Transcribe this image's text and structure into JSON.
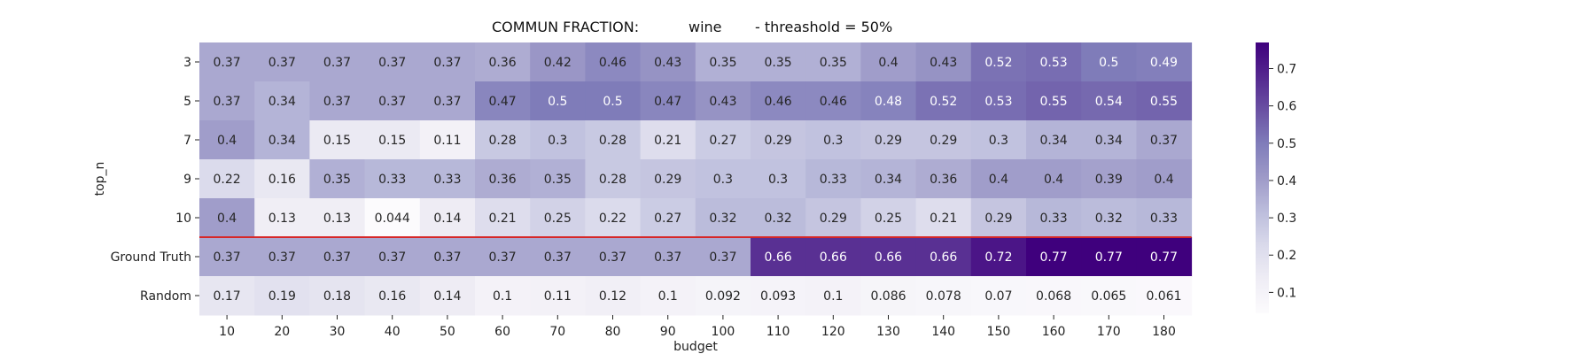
{
  "chart_data": {
    "type": "heatmap",
    "title_parts": [
      "COMMUN FRACTION:",
      "wine",
      "- threashold = 50%"
    ],
    "xlabel": "budget",
    "ylabel": "top_n",
    "x": [
      "10",
      "20",
      "30",
      "40",
      "50",
      "60",
      "70",
      "80",
      "90",
      "100",
      "110",
      "120",
      "130",
      "140",
      "150",
      "160",
      "170",
      "180"
    ],
    "y": [
      "3",
      "5",
      "7",
      "9",
      "10",
      "Ground Truth",
      "Random"
    ],
    "values": [
      [
        "0.37",
        "0.37",
        "0.37",
        "0.37",
        "0.37",
        "0.36",
        "0.42",
        "0.46",
        "0.43",
        "0.35",
        "0.35",
        "0.35",
        "0.4",
        "0.43",
        "0.52",
        "0.53",
        "0.5",
        "0.49"
      ],
      [
        "0.37",
        "0.34",
        "0.37",
        "0.37",
        "0.37",
        "0.47",
        "0.5",
        "0.5",
        "0.47",
        "0.43",
        "0.46",
        "0.46",
        "0.48",
        "0.52",
        "0.53",
        "0.55",
        "0.54",
        "0.55"
      ],
      [
        "0.4",
        "0.34",
        "0.15",
        "0.15",
        "0.11",
        "0.28",
        "0.3",
        "0.28",
        "0.21",
        "0.27",
        "0.29",
        "0.3",
        "0.29",
        "0.29",
        "0.3",
        "0.34",
        "0.34",
        "0.37"
      ],
      [
        "0.22",
        "0.16",
        "0.35",
        "0.33",
        "0.33",
        "0.36",
        "0.35",
        "0.28",
        "0.29",
        "0.3",
        "0.3",
        "0.33",
        "0.34",
        "0.36",
        "0.4",
        "0.4",
        "0.39",
        "0.4"
      ],
      [
        "0.4",
        "0.13",
        "0.13",
        "0.044",
        "0.14",
        "0.21",
        "0.25",
        "0.22",
        "0.27",
        "0.32",
        "0.32",
        "0.29",
        "0.25",
        "0.21",
        "0.29",
        "0.33",
        "0.32",
        "0.33"
      ],
      [
        "0.37",
        "0.37",
        "0.37",
        "0.37",
        "0.37",
        "0.37",
        "0.37",
        "0.37",
        "0.37",
        "0.37",
        "0.66",
        "0.66",
        "0.66",
        "0.66",
        "0.72",
        "0.77",
        "0.77",
        "0.77"
      ],
      [
        "0.17",
        "0.19",
        "0.18",
        "0.16",
        "0.14",
        "0.1",
        "0.11",
        "0.12",
        "0.1",
        "0.092",
        "0.093",
        "0.1",
        "0.086",
        "0.078",
        "0.07",
        "0.068",
        "0.065",
        "0.061"
      ]
    ],
    "colorbar": {
      "min": 0.044,
      "max": 0.77,
      "ticks": [
        "0.1",
        "0.2",
        "0.3",
        "0.4",
        "0.5",
        "0.6",
        "0.7"
      ],
      "colormap": "Purples"
    },
    "separator_after_row": "10",
    "separator_color": "#d62728",
    "grid": false
  }
}
